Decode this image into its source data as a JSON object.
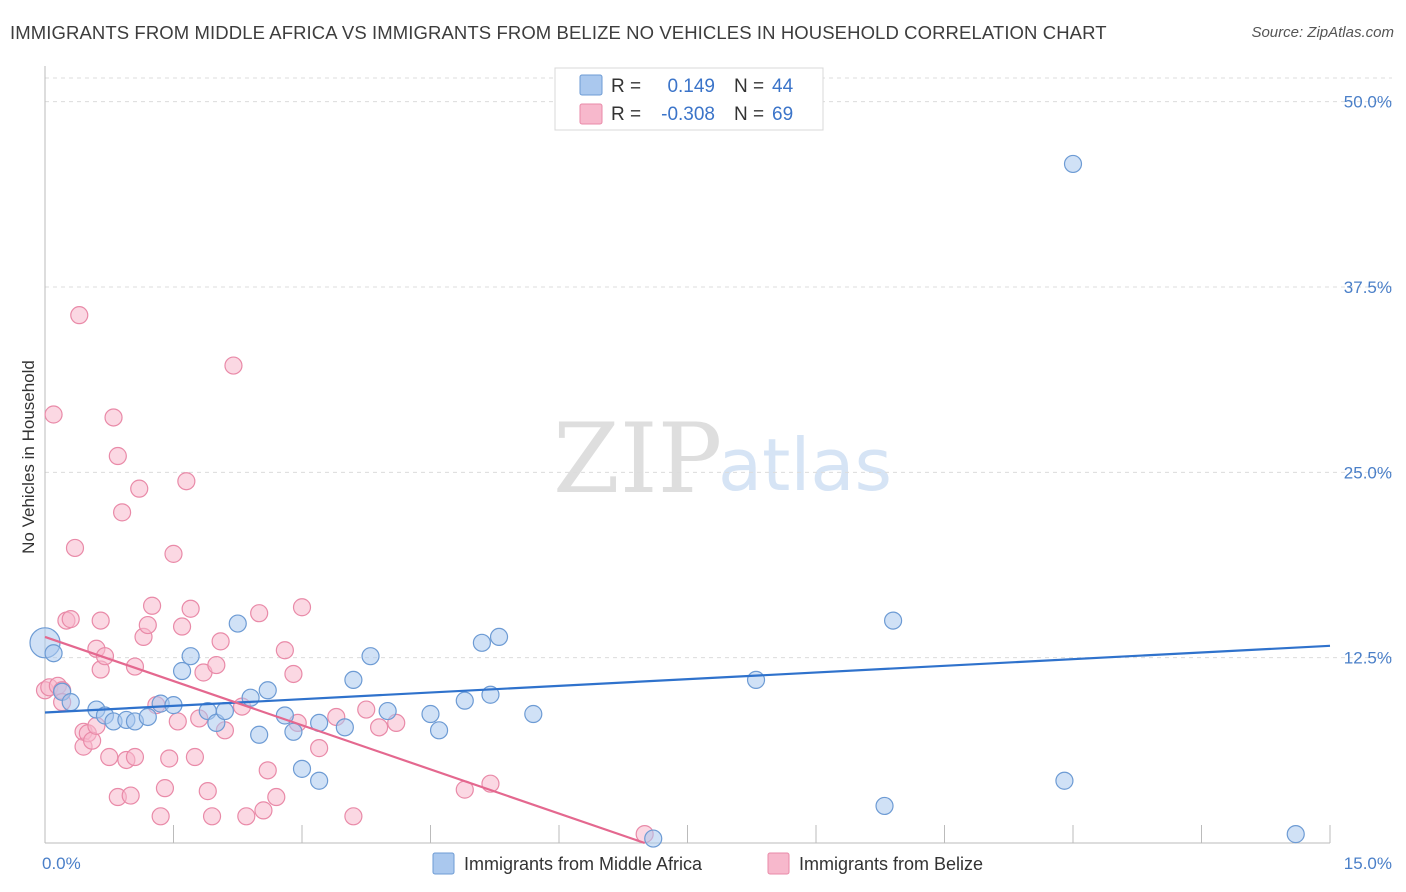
{
  "title": "IMMIGRANTS FROM MIDDLE AFRICA VS IMMIGRANTS FROM BELIZE NO VEHICLES IN HOUSEHOLD CORRELATION CHART",
  "source": "Source: ZipAtlas.com",
  "watermark": {
    "zip": "ZIP",
    "atlas": "atlas"
  },
  "colors": {
    "blue_fill": "#aac8ee",
    "blue_stroke": "#6d9bd4",
    "blue_line": "#2f72cc",
    "pink_fill": "#f7b8cc",
    "pink_stroke": "#e98aa8",
    "pink_line": "#e4688f",
    "grid": "#dcdcdc",
    "tick_label": "#4a7fc8"
  },
  "legend": {
    "rows": [
      {
        "r_label": "R =",
        "r_value": "0.149",
        "n_label": "N =",
        "n_value": "44",
        "swatch": "blue"
      },
      {
        "r_label": "R =",
        "r_value": "-0.308",
        "n_label": "N =",
        "n_value": "69",
        "swatch": "pink"
      }
    ]
  },
  "chart_data": {
    "type": "scatter",
    "title": "IMMIGRANTS FROM MIDDLE AFRICA VS IMMIGRANTS FROM BELIZE NO VEHICLES IN HOUSEHOLD CORRELATION CHART",
    "xlabel": "",
    "ylabel": "No Vehicles in Household",
    "xlim": [
      0,
      15
    ],
    "ylim": [
      0,
      52
    ],
    "x_tick_labels": [
      "0.0%",
      "15.0%"
    ],
    "y_ticks": [
      12.5,
      25.0,
      37.5,
      50.0
    ],
    "y_tick_labels": [
      "12.5%",
      "25.0%",
      "37.5%",
      "50.0%"
    ],
    "grid": true,
    "legend_position": "bottom-center",
    "series": [
      {
        "name": "Immigrants from Middle Africa",
        "color": "blue",
        "points": [
          [
            0.0,
            13.5
          ],
          [
            0.1,
            12.8
          ],
          [
            0.2,
            10.2
          ],
          [
            0.3,
            9.5
          ],
          [
            0.6,
            9.0
          ],
          [
            0.7,
            8.6
          ],
          [
            0.8,
            8.2
          ],
          [
            0.95,
            8.3
          ],
          [
            1.05,
            8.2
          ],
          [
            1.2,
            8.5
          ],
          [
            1.35,
            9.4
          ],
          [
            1.5,
            9.3
          ],
          [
            1.6,
            11.6
          ],
          [
            1.7,
            12.6
          ],
          [
            1.9,
            8.9
          ],
          [
            2.0,
            8.1
          ],
          [
            2.1,
            8.9
          ],
          [
            2.25,
            14.8
          ],
          [
            2.4,
            9.8
          ],
          [
            2.5,
            7.3
          ],
          [
            2.6,
            10.3
          ],
          [
            2.8,
            8.6
          ],
          [
            2.9,
            7.5
          ],
          [
            3.0,
            5.0
          ],
          [
            3.2,
            8.1
          ],
          [
            3.2,
            4.2
          ],
          [
            3.5,
            7.8
          ],
          [
            3.6,
            11.0
          ],
          [
            3.8,
            12.6
          ],
          [
            4.0,
            8.9
          ],
          [
            4.5,
            8.7
          ],
          [
            4.6,
            7.6
          ],
          [
            4.9,
            9.6
          ],
          [
            5.1,
            13.5
          ],
          [
            5.2,
            10.0
          ],
          [
            5.3,
            13.9
          ],
          [
            5.7,
            8.7
          ],
          [
            7.1,
            0.3
          ],
          [
            8.3,
            11.0
          ],
          [
            9.8,
            2.5
          ],
          [
            9.9,
            15.0
          ],
          [
            11.9,
            4.2
          ],
          [
            12.0,
            45.8
          ],
          [
            14.6,
            0.6
          ]
        ]
      },
      {
        "name": "Immigrants from Belize",
        "color": "pink",
        "points": [
          [
            0.0,
            10.3
          ],
          [
            0.05,
            10.5
          ],
          [
            0.1,
            28.9
          ],
          [
            0.15,
            10.6
          ],
          [
            0.2,
            10.3
          ],
          [
            0.2,
            9.5
          ],
          [
            0.25,
            15.0
          ],
          [
            0.3,
            15.1
          ],
          [
            0.35,
            19.9
          ],
          [
            0.4,
            35.6
          ],
          [
            0.45,
            7.5
          ],
          [
            0.45,
            6.5
          ],
          [
            0.5,
            7.4
          ],
          [
            0.55,
            6.9
          ],
          [
            0.6,
            7.9
          ],
          [
            0.6,
            13.1
          ],
          [
            0.65,
            11.7
          ],
          [
            0.65,
            15.0
          ],
          [
            0.7,
            12.6
          ],
          [
            0.75,
            5.8
          ],
          [
            0.8,
            28.7
          ],
          [
            0.85,
            26.1
          ],
          [
            0.85,
            3.1
          ],
          [
            0.9,
            22.3
          ],
          [
            0.95,
            5.6
          ],
          [
            1.0,
            3.2
          ],
          [
            1.05,
            5.8
          ],
          [
            1.05,
            11.9
          ],
          [
            1.1,
            23.9
          ],
          [
            1.15,
            13.9
          ],
          [
            1.2,
            14.7
          ],
          [
            1.25,
            16.0
          ],
          [
            1.3,
            9.3
          ],
          [
            1.35,
            1.8
          ],
          [
            1.4,
            3.7
          ],
          [
            1.45,
            5.7
          ],
          [
            1.5,
            19.5
          ],
          [
            1.55,
            8.2
          ],
          [
            1.6,
            14.6
          ],
          [
            1.65,
            24.4
          ],
          [
            1.7,
            15.8
          ],
          [
            1.75,
            5.8
          ],
          [
            1.8,
            8.4
          ],
          [
            1.85,
            11.5
          ],
          [
            1.9,
            3.5
          ],
          [
            1.95,
            1.8
          ],
          [
            2.0,
            12.0
          ],
          [
            2.05,
            13.6
          ],
          [
            2.1,
            7.6
          ],
          [
            2.2,
            32.2
          ],
          [
            2.3,
            9.2
          ],
          [
            2.35,
            1.8
          ],
          [
            2.5,
            15.5
          ],
          [
            2.55,
            2.2
          ],
          [
            2.6,
            4.9
          ],
          [
            2.7,
            3.1
          ],
          [
            2.8,
            13.0
          ],
          [
            2.9,
            11.4
          ],
          [
            2.95,
            8.1
          ],
          [
            3.0,
            15.9
          ],
          [
            3.2,
            6.4
          ],
          [
            3.4,
            8.5
          ],
          [
            3.6,
            1.8
          ],
          [
            3.75,
            9.0
          ],
          [
            3.9,
            7.8
          ],
          [
            4.1,
            8.1
          ],
          [
            4.9,
            3.6
          ],
          [
            5.2,
            4.0
          ],
          [
            7.0,
            0.6
          ]
        ]
      }
    ],
    "trend_lines": [
      {
        "series": "Immigrants from Middle Africa",
        "x": [
          0.0,
          15.0
        ],
        "y": [
          8.8,
          13.3
        ]
      },
      {
        "series": "Immigrants from Belize",
        "x": [
          0.0,
          7.0
        ],
        "y": [
          13.9,
          0.0
        ]
      }
    ]
  }
}
